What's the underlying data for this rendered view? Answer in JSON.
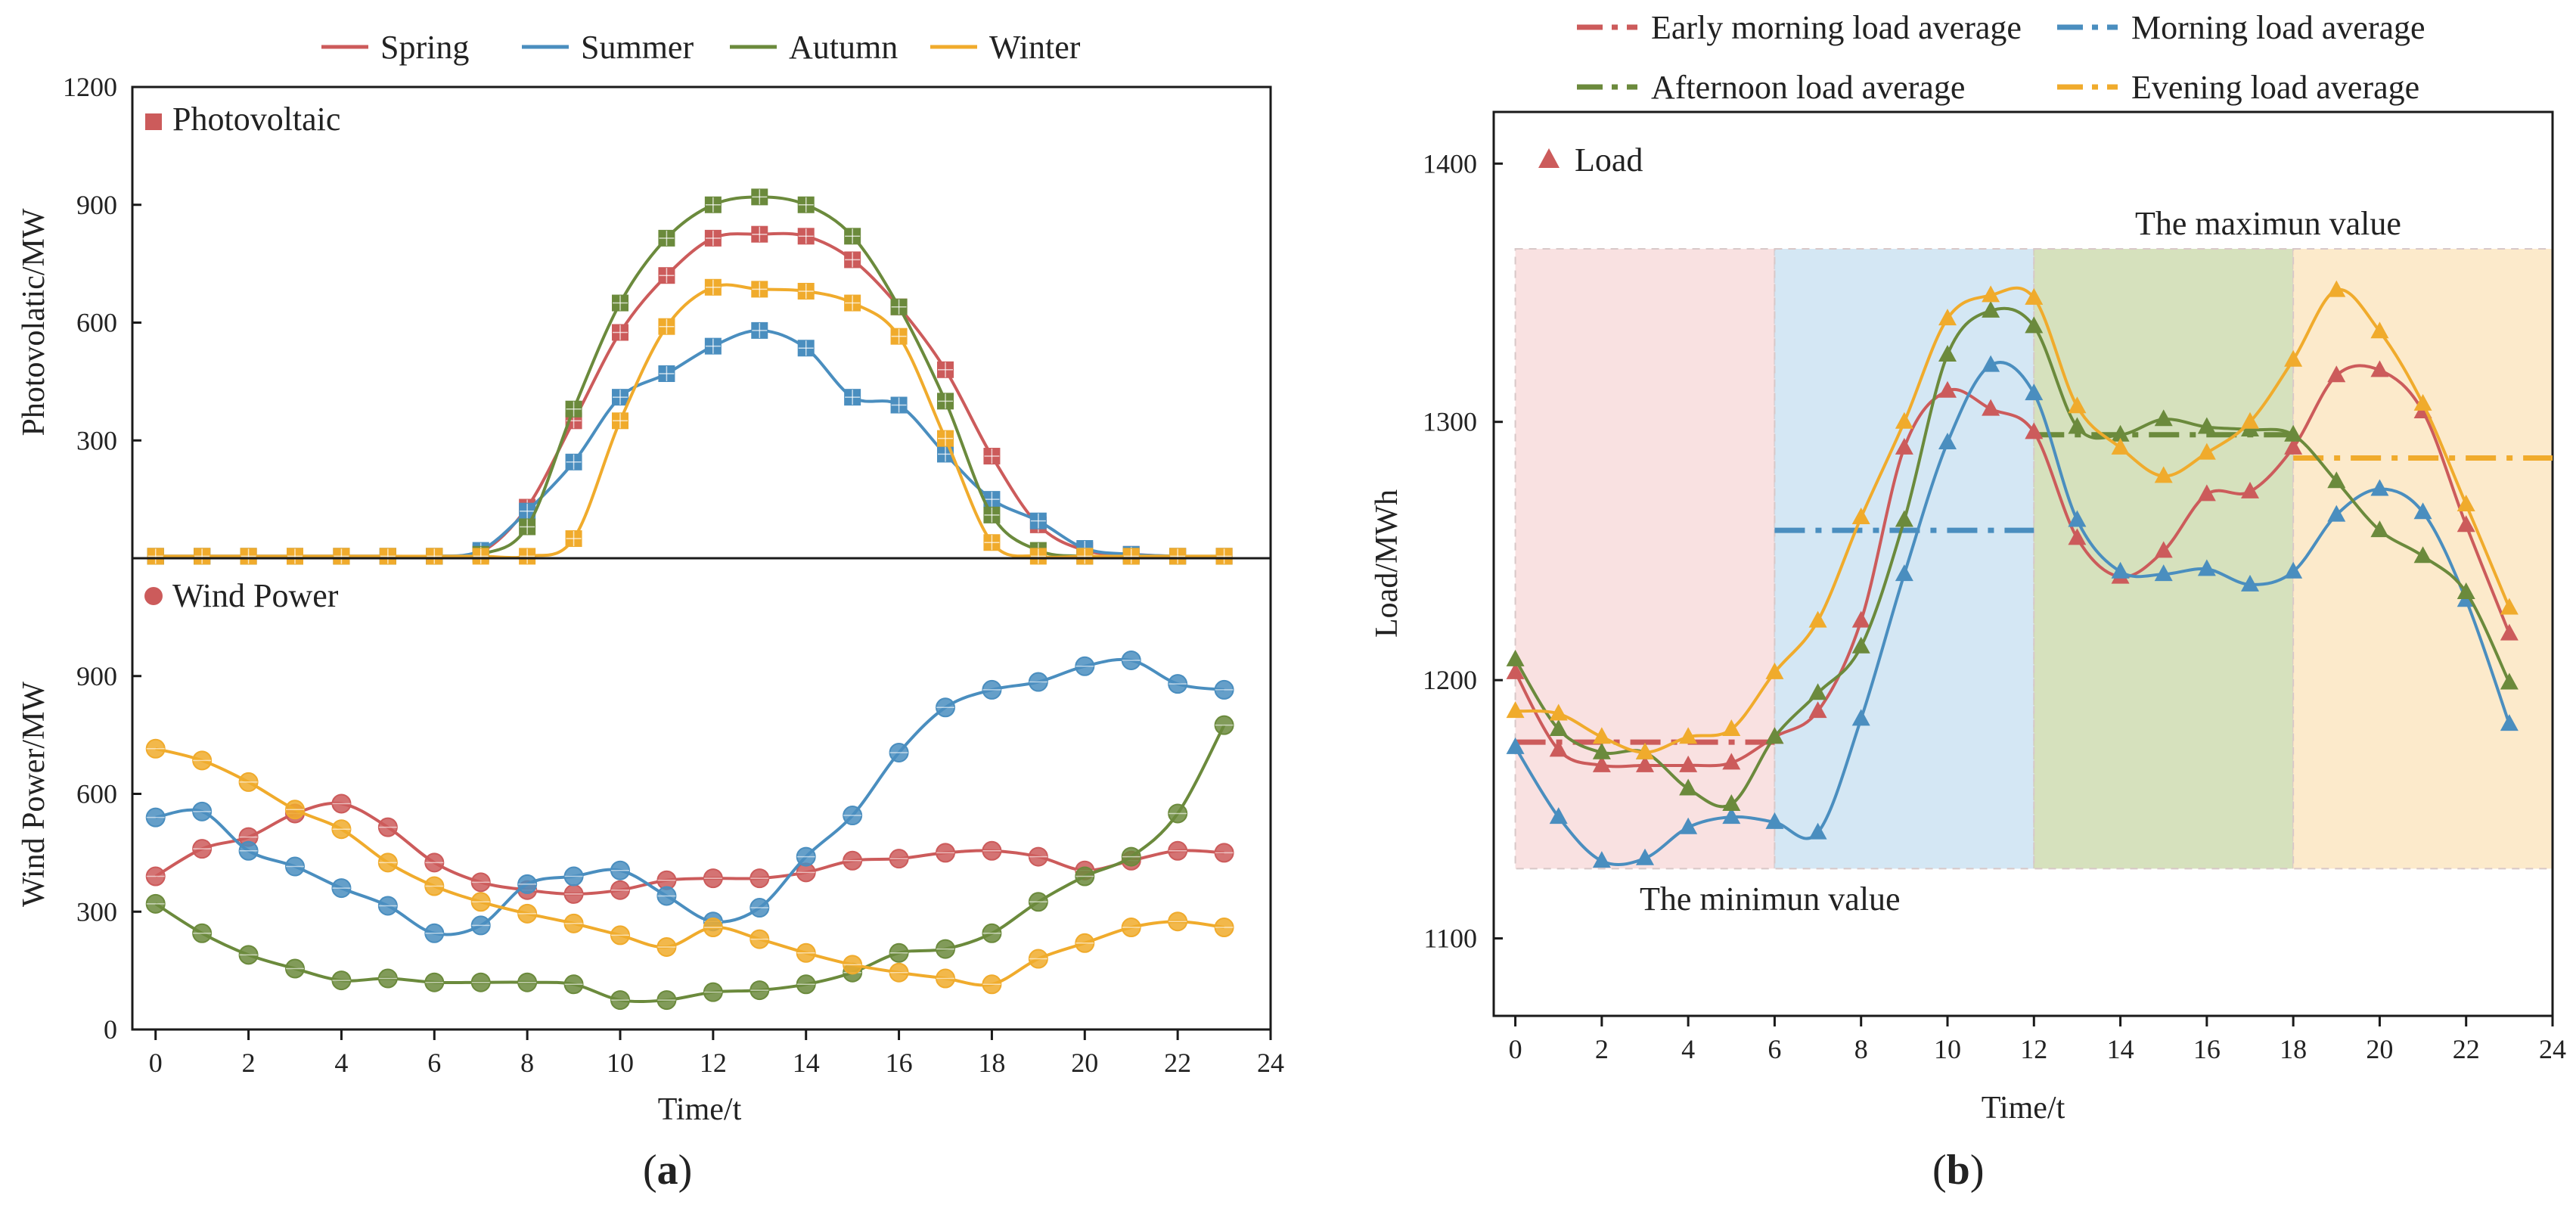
{
  "colors": {
    "spring": "#cc5b5b",
    "summer": "#4a8ebf",
    "autumn": "#6b8a3c",
    "winter": "#f0ab2c",
    "load_red": "#cc5b5b",
    "load_blue": "#4a8ebf",
    "load_green": "#6b8a3c",
    "load_orange": "#f0ab2c",
    "zone_early": "#f8dcdc",
    "zone_morning": "#cde3f2",
    "zone_afternoon": "#cfdcb2",
    "zone_evening": "#fbe6c2"
  },
  "figure": {
    "label_a_open": "(",
    "label_a": "a",
    "label_a_close": ")",
    "label_b_open": "(",
    "label_b": "b",
    "label_b_close": ")"
  },
  "legend_a": [
    "Spring",
    "Summer",
    "Autumn",
    "Winter"
  ],
  "chart_data": [
    {
      "id": "a-top",
      "type": "line",
      "title": "Photovoltaic",
      "marker": "square",
      "xlabel": "Time/t",
      "ylabel": "Photovolatic/MW",
      "xlim": [
        -0.5,
        24
      ],
      "ylim": [
        0,
        1200
      ],
      "yticks": [
        300,
        600,
        900,
        1200
      ],
      "x": [
        0,
        1,
        2,
        3,
        4,
        5,
        6,
        7,
        8,
        9,
        10,
        11,
        12,
        13,
        14,
        15,
        16,
        17,
        18,
        19,
        20,
        21,
        22,
        23
      ],
      "series": [
        {
          "name": "Spring",
          "color_key": "spring",
          "values": [
            5,
            5,
            5,
            5,
            5,
            5,
            5,
            15,
            130,
            350,
            575,
            720,
            815,
            825,
            820,
            760,
            640,
            480,
            260,
            85,
            20,
            10,
            5,
            5
          ]
        },
        {
          "name": "Summer",
          "color_key": "summer",
          "values": [
            5,
            5,
            5,
            5,
            5,
            5,
            5,
            20,
            120,
            245,
            410,
            470,
            540,
            580,
            535,
            410,
            390,
            265,
            150,
            95,
            25,
            10,
            5,
            5
          ]
        },
        {
          "name": "Autumn",
          "color_key": "autumn",
          "values": [
            5,
            5,
            5,
            5,
            5,
            5,
            5,
            10,
            80,
            380,
            650,
            815,
            900,
            920,
            900,
            820,
            640,
            400,
            110,
            20,
            5,
            5,
            5,
            5
          ]
        },
        {
          "name": "Winter",
          "color_key": "winter",
          "values": [
            5,
            5,
            5,
            5,
            5,
            5,
            5,
            5,
            5,
            50,
            350,
            590,
            690,
            685,
            680,
            650,
            565,
            305,
            40,
            5,
            5,
            5,
            5,
            5
          ]
        }
      ]
    },
    {
      "id": "a-bottom",
      "type": "line",
      "title": "Wind Power",
      "marker": "circle",
      "xlabel": "Time/t",
      "ylabel": "Wind Power/MW",
      "xlim": [
        -0.5,
        24
      ],
      "ylim": [
        0,
        1200
      ],
      "yticks": [
        0,
        300,
        600,
        900
      ],
      "xticks": [
        0,
        2,
        4,
        6,
        8,
        10,
        12,
        14,
        16,
        18,
        20,
        22,
        24
      ],
      "x": [
        0,
        1,
        2,
        3,
        4,
        5,
        6,
        7,
        8,
        9,
        10,
        11,
        12,
        13,
        14,
        15,
        16,
        17,
        18,
        19,
        20,
        21,
        22,
        23
      ],
      "series": [
        {
          "name": "Spring",
          "color_key": "spring",
          "values": [
            390,
            460,
            490,
            550,
            575,
            515,
            425,
            375,
            355,
            345,
            355,
            380,
            385,
            385,
            400,
            430,
            435,
            450,
            455,
            440,
            405,
            430,
            455,
            450
          ]
        },
        {
          "name": "Summer",
          "color_key": "summer",
          "values": [
            540,
            555,
            455,
            415,
            360,
            315,
            245,
            265,
            370,
            390,
            405,
            340,
            275,
            310,
            440,
            545,
            705,
            820,
            865,
            885,
            925,
            940,
            880,
            865
          ]
        },
        {
          "name": "Autumn",
          "color_key": "autumn",
          "values": [
            320,
            245,
            190,
            155,
            125,
            130,
            120,
            120,
            120,
            115,
            75,
            75,
            95,
            100,
            115,
            145,
            195,
            205,
            245,
            325,
            390,
            440,
            550,
            775
          ]
        },
        {
          "name": "Winter",
          "color_key": "winter",
          "values": [
            715,
            685,
            630,
            560,
            510,
            425,
            365,
            325,
            295,
            270,
            240,
            210,
            260,
            230,
            195,
            165,
            145,
            130,
            115,
            180,
            220,
            260,
            275,
            260
          ]
        }
      ]
    },
    {
      "id": "b",
      "type": "line",
      "title": "Load",
      "marker": "triangle",
      "xlabel": "Time/t",
      "ylabel": "Load/MWh",
      "xlim": [
        -0.5,
        24
      ],
      "ylim": [
        1070,
        1420
      ],
      "yticks": [
        1100,
        1200,
        1300,
        1400
      ],
      "xticks": [
        0,
        2,
        4,
        6,
        8,
        10,
        12,
        14,
        16,
        18,
        20,
        22,
        24
      ],
      "x": [
        0,
        1,
        2,
        3,
        4,
        5,
        6,
        7,
        8,
        9,
        10,
        11,
        12,
        13,
        14,
        15,
        16,
        17,
        18,
        19,
        20,
        21,
        22,
        23
      ],
      "series": [
        {
          "name": "Load series red",
          "color_key": "load_red",
          "values": [
            1203,
            1173,
            1167,
            1167,
            1167,
            1168,
            1178,
            1188,
            1223,
            1290,
            1312,
            1305,
            1296,
            1255,
            1240,
            1250,
            1272,
            1273,
            1290,
            1318,
            1320,
            1304,
            1260,
            1218
          ]
        },
        {
          "name": "Load series blue",
          "color_key": "load_blue",
          "values": [
            1174,
            1147,
            1130,
            1131,
            1143,
            1147,
            1145,
            1141,
            1185,
            1241,
            1292,
            1322,
            1311,
            1262,
            1242,
            1241,
            1243,
            1237,
            1242,
            1264,
            1274,
            1265,
            1231,
            1183
          ]
        },
        {
          "name": "Load series green",
          "color_key": "load_green",
          "values": [
            1208,
            1181,
            1172,
            1172,
            1158,
            1152,
            1178,
            1195,
            1213,
            1262,
            1326,
            1343,
            1337,
            1298,
            1295,
            1301,
            1298,
            1297,
            1295,
            1277,
            1258,
            1248,
            1234,
            1199
          ]
        },
        {
          "name": "Load series orange",
          "color_key": "load_orange",
          "values": [
            1188,
            1187,
            1178,
            1172,
            1178,
            1181,
            1203,
            1223,
            1263,
            1300,
            1340,
            1349,
            1348,
            1306,
            1290,
            1279,
            1288,
            1300,
            1324,
            1351,
            1335,
            1307,
            1268,
            1228
          ]
        }
      ],
      "averages": [
        {
          "name": "Early morning load average",
          "color_key": "load_red",
          "x_range": [
            0,
            6
          ],
          "value": 1176
        },
        {
          "name": "Morning load average",
          "color_key": "load_blue",
          "x_range": [
            6,
            12
          ],
          "value": 1258
        },
        {
          "name": "Afternoon load average",
          "color_key": "load_green",
          "x_range": [
            12,
            18
          ],
          "value": 1295
        },
        {
          "name": "Evening load average",
          "color_key": "load_orange",
          "x_range": [
            18,
            24
          ],
          "value": 1286
        }
      ],
      "zones": [
        {
          "color_key": "zone_early",
          "x_range": [
            0,
            6
          ]
        },
        {
          "color_key": "zone_morning",
          "x_range": [
            6,
            12
          ]
        },
        {
          "color_key": "zone_afternoon",
          "x_range": [
            12,
            18
          ]
        },
        {
          "color_key": "zone_evening",
          "x_range": [
            18,
            24
          ]
        }
      ],
      "zone_y_range": [
        1127,
        1367
      ],
      "annotations": [
        "The maximun value",
        "The minimun value"
      ]
    }
  ]
}
